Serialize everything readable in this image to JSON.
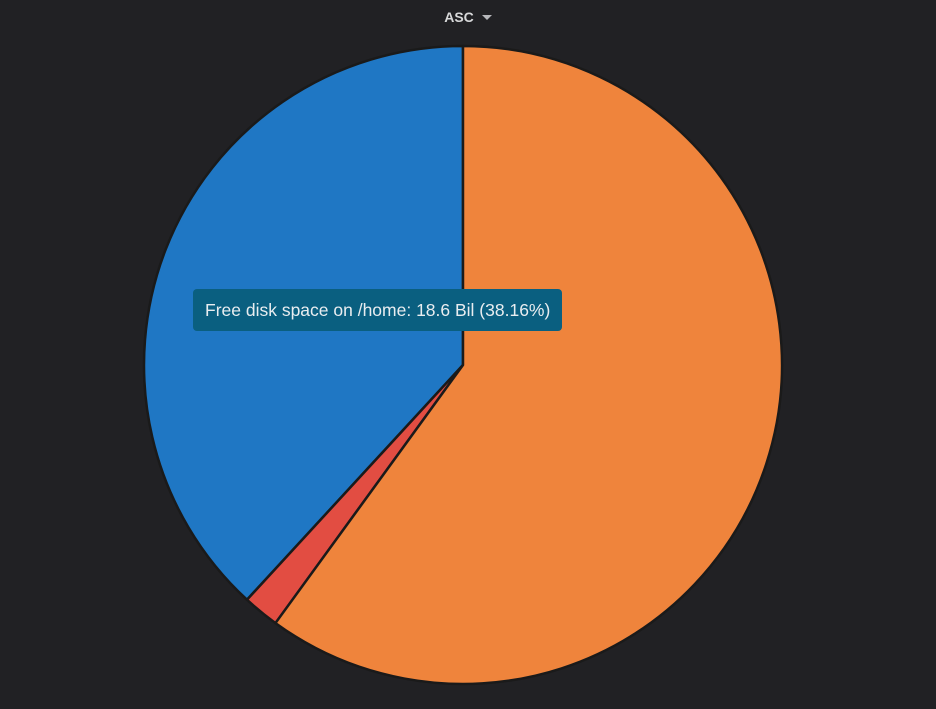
{
  "sort_control": {
    "label": "ASC",
    "icon": "caret-down-icon"
  },
  "chart_data": {
    "type": "pie",
    "title": "",
    "slices": [
      {
        "name": "Free disk space on /home",
        "value": 18.6,
        "percent": 38.16,
        "color": "#1f77c4"
      },
      {
        "name": "",
        "percent": 1.84,
        "color": "#e24d42"
      },
      {
        "name": "",
        "percent": 60.0,
        "color": "#ef843c"
      }
    ],
    "slice_border_color": "#1a1a1a"
  },
  "tooltip": {
    "text": "Free disk space on /home: 18.6 Bil (38.16%)",
    "color": "#0a5f80"
  }
}
